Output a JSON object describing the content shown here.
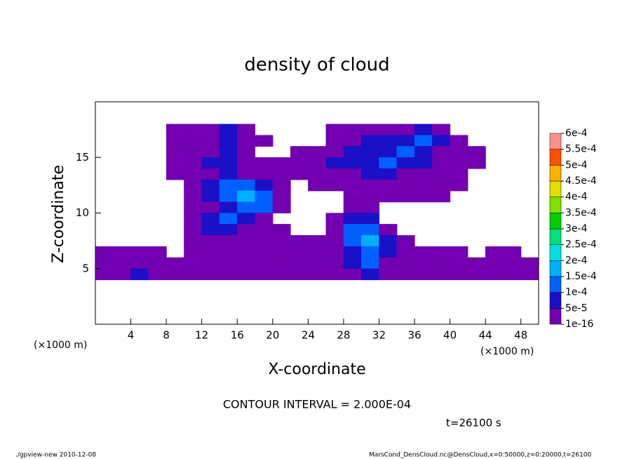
{
  "chart_data": {
    "type": "contour",
    "title": "density of cloud",
    "x_label": "X-coordinate",
    "y_label": "Z-coordinate",
    "x_unit": "(×1000 m)",
    "y_unit": "(×1000 m)",
    "annotation": "CONTOUR INTERVAL = 2.000E-04",
    "time_label": "t=26100 s",
    "footer_left": "./gpview-new  2010-12-08",
    "footer_right": "MarsCond_DensCloud.nc@DensCloud,x=0:50000,z=0:20000,t=26100",
    "xlim": [
      0,
      50
    ],
    "ylim": [
      0,
      20
    ],
    "xticks": [
      4,
      8,
      12,
      16,
      20,
      24,
      28,
      32,
      36,
      40,
      44,
      48
    ],
    "yticks": [
      5,
      10,
      15
    ],
    "x": [
      1,
      3,
      5,
      7,
      9,
      11,
      13,
      15,
      17,
      19,
      21,
      23,
      25,
      27,
      29,
      31,
      33,
      35,
      37,
      39,
      41,
      43,
      45,
      47,
      49
    ],
    "z": [
      17.5,
      16.5,
      15.5,
      14.5,
      13.5,
      12.5,
      11.5,
      10.5,
      9.5,
      8.5,
      7.5,
      6.5,
      5.5,
      4.5
    ],
    "values": [
      [
        0,
        0,
        0,
        0,
        1e-05,
        1e-05,
        1e-05,
        7e-05,
        1e-05,
        0,
        0,
        0,
        0,
        1e-05,
        1e-05,
        1e-05,
        1e-05,
        1e-05,
        7e-05,
        1e-05,
        0,
        0,
        0,
        0,
        0
      ],
      [
        0,
        0,
        0,
        0,
        1e-05,
        1e-05,
        1e-05,
        7e-05,
        1e-05,
        1e-05,
        0,
        0,
        0,
        1e-05,
        1e-05,
        7e-05,
        7e-05,
        7e-05,
        0.00012,
        7e-05,
        1e-05,
        0,
        0,
        0,
        0
      ],
      [
        0,
        0,
        0,
        0,
        1e-05,
        1e-05,
        1e-05,
        7e-05,
        1e-05,
        0,
        0,
        1e-05,
        1e-05,
        1e-05,
        7e-05,
        7e-05,
        7e-05,
        0.00012,
        7e-05,
        1e-05,
        1e-05,
        1e-05,
        0,
        0,
        0
      ],
      [
        0,
        0,
        0,
        0,
        1e-05,
        1e-05,
        7e-05,
        7e-05,
        1e-05,
        1e-05,
        1e-05,
        1e-05,
        1e-05,
        7e-05,
        7e-05,
        7e-05,
        0.00012,
        7e-05,
        7e-05,
        1e-05,
        1e-05,
        1e-05,
        0,
        0,
        0
      ],
      [
        0,
        0,
        0,
        0,
        1e-05,
        1e-05,
        1e-05,
        7e-05,
        1e-05,
        1e-05,
        1e-05,
        1e-05,
        1e-05,
        1e-05,
        1e-05,
        7e-05,
        7e-05,
        1e-05,
        1e-05,
        1e-05,
        1e-05,
        0,
        0,
        0,
        0
      ],
      [
        0,
        0,
        0,
        0,
        0,
        1e-05,
        7e-05,
        0.00012,
        0.00012,
        7e-05,
        1e-05,
        0,
        1e-05,
        1e-05,
        1e-05,
        1e-05,
        1e-05,
        1e-05,
        1e-05,
        1e-05,
        1e-05,
        0,
        0,
        0,
        0
      ],
      [
        0,
        0,
        0,
        0,
        0,
        1e-05,
        7e-05,
        0.00012,
        0.00016,
        0.00012,
        1e-05,
        0,
        0,
        0,
        1e-05,
        1e-05,
        1e-05,
        1e-05,
        1e-05,
        1e-05,
        0,
        0,
        0,
        0,
        0
      ],
      [
        0,
        0,
        0,
        0,
        0,
        1e-05,
        1e-05,
        7e-05,
        0.00012,
        0.00012,
        1e-05,
        0,
        0,
        0,
        1e-05,
        1e-05,
        0,
        0,
        0,
        0,
        0,
        0,
        0,
        0,
        0
      ],
      [
        0,
        0,
        0,
        0,
        0,
        1e-05,
        7e-05,
        0.00012,
        7e-05,
        1e-05,
        0,
        0,
        0,
        1e-05,
        7e-05,
        7e-05,
        0,
        0,
        0,
        0,
        0,
        0,
        0,
        0,
        0
      ],
      [
        0,
        0,
        0,
        0,
        0,
        1e-05,
        7e-05,
        7e-05,
        1e-05,
        1e-05,
        1e-05,
        0,
        0,
        1e-05,
        0.00012,
        0.00012,
        1e-05,
        0,
        0,
        0,
        0,
        0,
        0,
        0,
        0
      ],
      [
        0,
        0,
        0,
        0,
        0,
        1e-05,
        1e-05,
        1e-05,
        1e-05,
        1e-05,
        1e-05,
        1e-05,
        1e-05,
        1e-05,
        0.00012,
        0.00016,
        7e-05,
        1e-05,
        0,
        0,
        0,
        0,
        0,
        0,
        0
      ],
      [
        1e-05,
        1e-05,
        1e-05,
        1e-05,
        0,
        1e-05,
        1e-05,
        1e-05,
        1e-05,
        1e-05,
        1e-05,
        1e-05,
        1e-05,
        1e-05,
        7e-05,
        0.00012,
        7e-05,
        1e-05,
        1e-05,
        1e-05,
        1e-05,
        0,
        1e-05,
        1e-05,
        0
      ],
      [
        1e-05,
        1e-05,
        1e-05,
        1e-05,
        1e-05,
        1e-05,
        1e-05,
        1e-05,
        1e-05,
        1e-05,
        1e-05,
        1e-05,
        1e-05,
        1e-05,
        7e-05,
        0.00012,
        1e-05,
        1e-05,
        1e-05,
        1e-05,
        1e-05,
        1e-05,
        1e-05,
        1e-05,
        1e-05
      ],
      [
        1e-05,
        1e-05,
        7e-05,
        1e-05,
        1e-05,
        1e-05,
        1e-05,
        1e-05,
        1e-05,
        1e-05,
        1e-05,
        1e-05,
        1e-05,
        1e-05,
        1e-05,
        7e-05,
        1e-05,
        1e-05,
        1e-05,
        1e-05,
        1e-05,
        1e-05,
        1e-05,
        1e-05,
        1e-05
      ]
    ],
    "levels": [
      1e-16,
      {
        "value": 5e-05,
        "label": "5e-5"
      },
      {
        "value": 0.0001,
        "label": "1e-4"
      },
      {
        "value": 0.00015,
        "label": "1.5e-4"
      },
      {
        "value": 0.0002,
        "label": "2e-4"
      },
      {
        "value": 0.00025,
        "label": "2.5e-4"
      },
      {
        "value": 0.0003,
        "label": "3e-4"
      },
      {
        "value": 0.00035,
        "label": "3.5e-4"
      },
      {
        "value": 0.0004,
        "label": "4e-4"
      },
      {
        "value": 0.00045,
        "label": "4.5e-4"
      },
      {
        "value": 0.0005,
        "label": "5e-4"
      },
      {
        "value": 0.00055,
        "label": "5.5e-4"
      },
      {
        "value": 0.0006,
        "label": "6e-4"
      }
    ],
    "colors": [
      "#7200b0",
      "#1a10c8",
      "#0060ff",
      "#00b0ff",
      "#00e0e0",
      "#00e080",
      "#00d000",
      "#80e000",
      "#e0e000",
      "#ffb000",
      "#ff5000",
      "#ff9090"
    ]
  }
}
